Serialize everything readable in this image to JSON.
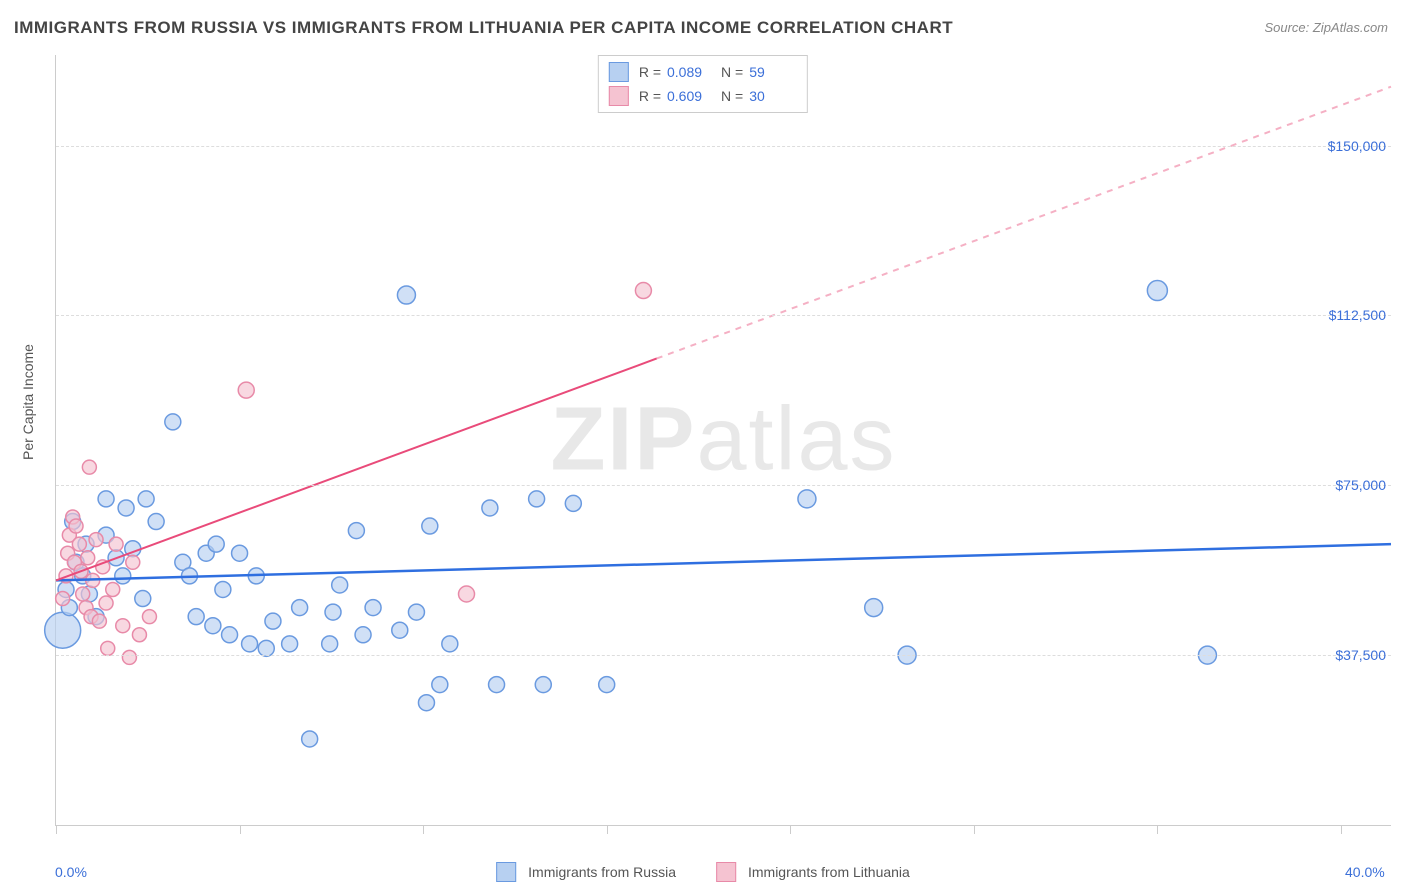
{
  "title": "IMMIGRANTS FROM RUSSIA VS IMMIGRANTS FROM LITHUANIA PER CAPITA INCOME CORRELATION CHART",
  "source": "Source: ZipAtlas.com",
  "watermark": {
    "bold": "ZIP",
    "rest": "atlas"
  },
  "ylabel": "Per Capita Income",
  "chart": {
    "type": "scatter",
    "background_color": "#ffffff",
    "grid_color": "#dddddd",
    "axis_color": "#cccccc",
    "text_color": "#555555",
    "value_color": "#3b6fd8",
    "title_fontsize": 17,
    "label_fontsize": 14,
    "xlim": [
      0,
      40
    ],
    "ylim": [
      0,
      170000
    ],
    "xtick_marks": [
      0,
      5.5,
      11,
      16.5,
      22,
      27.5,
      33,
      38.5
    ],
    "xtick_labels": [
      {
        "x": 0,
        "label": "0.0%"
      },
      {
        "x": 40,
        "label": "40.0%"
      }
    ],
    "ytick_labels": [
      {
        "y": 37500,
        "label": "$37,500"
      },
      {
        "y": 75000,
        "label": "$75,000"
      },
      {
        "y": 112500,
        "label": "$112,500"
      },
      {
        "y": 150000,
        "label": "$150,000"
      }
    ],
    "series": [
      {
        "name": "Immigrants from Russia",
        "fill_color": "#b7d0f1",
        "stroke_color": "#6a9ae0",
        "fill_opacity": 0.65,
        "marker_radius": 8,
        "trend": {
          "x1": 0,
          "y1": 54000,
          "x2": 40,
          "y2": 62000,
          "color": "#2f6fe0",
          "width": 2.5,
          "dash": "none"
        },
        "R": "0.089",
        "N": "59",
        "points": [
          {
            "x": 0.2,
            "y": 43000,
            "r": 18
          },
          {
            "x": 0.3,
            "y": 52000
          },
          {
            "x": 0.4,
            "y": 48000
          },
          {
            "x": 0.5,
            "y": 67000
          },
          {
            "x": 0.6,
            "y": 58000
          },
          {
            "x": 0.8,
            "y": 55000
          },
          {
            "x": 0.9,
            "y": 62000
          },
          {
            "x": 1.0,
            "y": 51000
          },
          {
            "x": 1.2,
            "y": 46000
          },
          {
            "x": 1.5,
            "y": 64000
          },
          {
            "x": 1.5,
            "y": 72000
          },
          {
            "x": 1.8,
            "y": 59000
          },
          {
            "x": 2.0,
            "y": 55000
          },
          {
            "x": 2.1,
            "y": 70000
          },
          {
            "x": 2.3,
            "y": 61000
          },
          {
            "x": 2.6,
            "y": 50000
          },
          {
            "x": 2.7,
            "y": 72000
          },
          {
            "x": 3.0,
            "y": 67000
          },
          {
            "x": 3.5,
            "y": 89000
          },
          {
            "x": 3.8,
            "y": 58000
          },
          {
            "x": 4.0,
            "y": 55000
          },
          {
            "x": 4.2,
            "y": 46000
          },
          {
            "x": 4.5,
            "y": 60000
          },
          {
            "x": 4.7,
            "y": 44000
          },
          {
            "x": 4.8,
            "y": 62000
          },
          {
            "x": 5.0,
            "y": 52000
          },
          {
            "x": 5.2,
            "y": 42000
          },
          {
            "x": 5.5,
            "y": 60000
          },
          {
            "x": 5.8,
            "y": 40000
          },
          {
            "x": 6.0,
            "y": 55000
          },
          {
            "x": 6.3,
            "y": 39000
          },
          {
            "x": 6.5,
            "y": 45000
          },
          {
            "x": 7.0,
            "y": 40000
          },
          {
            "x": 7.3,
            "y": 48000
          },
          {
            "x": 7.6,
            "y": 19000
          },
          {
            "x": 8.2,
            "y": 40000
          },
          {
            "x": 8.3,
            "y": 47000
          },
          {
            "x": 8.5,
            "y": 53000
          },
          {
            "x": 9.0,
            "y": 65000
          },
          {
            "x": 9.2,
            "y": 42000
          },
          {
            "x": 9.5,
            "y": 48000
          },
          {
            "x": 10.3,
            "y": 43000
          },
          {
            "x": 10.5,
            "y": 117000,
            "r": 9
          },
          {
            "x": 10.8,
            "y": 47000
          },
          {
            "x": 11.1,
            "y": 27000
          },
          {
            "x": 11.2,
            "y": 66000
          },
          {
            "x": 11.5,
            "y": 31000
          },
          {
            "x": 11.8,
            "y": 40000
          },
          {
            "x": 13.0,
            "y": 70000
          },
          {
            "x": 13.2,
            "y": 31000
          },
          {
            "x": 14.4,
            "y": 72000
          },
          {
            "x": 14.6,
            "y": 31000
          },
          {
            "x": 15.5,
            "y": 71000
          },
          {
            "x": 16.5,
            "y": 31000
          },
          {
            "x": 22.5,
            "y": 72000,
            "r": 9
          },
          {
            "x": 24.5,
            "y": 48000,
            "r": 9
          },
          {
            "x": 25.5,
            "y": 37500,
            "r": 9
          },
          {
            "x": 33.0,
            "y": 118000,
            "r": 10
          },
          {
            "x": 34.5,
            "y": 37500,
            "r": 9
          }
        ]
      },
      {
        "name": "Immigrants from Lithuania",
        "fill_color": "#f5c3d1",
        "stroke_color": "#e88aa8",
        "fill_opacity": 0.65,
        "marker_radius": 7,
        "trend_solid": {
          "x1": 0,
          "y1": 54000,
          "x2": 18,
          "y2": 103000,
          "color": "#e94b7a",
          "width": 2
        },
        "trend_dash": {
          "x1": 18,
          "y1": 103000,
          "x2": 40,
          "y2": 163000,
          "color": "#f5b0c4",
          "width": 2,
          "dash": "6,6"
        },
        "R": "0.609",
        "N": "30",
        "points": [
          {
            "x": 0.2,
            "y": 50000
          },
          {
            "x": 0.3,
            "y": 55000
          },
          {
            "x": 0.35,
            "y": 60000
          },
          {
            "x": 0.4,
            "y": 64000
          },
          {
            "x": 0.5,
            "y": 68000
          },
          {
            "x": 0.55,
            "y": 58000
          },
          {
            "x": 0.6,
            "y": 66000
          },
          {
            "x": 0.7,
            "y": 62000
          },
          {
            "x": 0.75,
            "y": 56000
          },
          {
            "x": 0.8,
            "y": 51000
          },
          {
            "x": 0.9,
            "y": 48000
          },
          {
            "x": 0.95,
            "y": 59000
          },
          {
            "x": 1.0,
            "y": 79000
          },
          {
            "x": 1.05,
            "y": 46000
          },
          {
            "x": 1.1,
            "y": 54000
          },
          {
            "x": 1.2,
            "y": 63000
          },
          {
            "x": 1.3,
            "y": 45000
          },
          {
            "x": 1.4,
            "y": 57000
          },
          {
            "x": 1.5,
            "y": 49000
          },
          {
            "x": 1.55,
            "y": 39000
          },
          {
            "x": 1.7,
            "y": 52000
          },
          {
            "x": 1.8,
            "y": 62000
          },
          {
            "x": 2.0,
            "y": 44000
          },
          {
            "x": 2.2,
            "y": 37000
          },
          {
            "x": 2.3,
            "y": 58000
          },
          {
            "x": 2.5,
            "y": 42000
          },
          {
            "x": 2.8,
            "y": 46000
          },
          {
            "x": 5.7,
            "y": 96000,
            "r": 8
          },
          {
            "x": 12.3,
            "y": 51000,
            "r": 8
          },
          {
            "x": 17.6,
            "y": 118000,
            "r": 8
          }
        ]
      }
    ],
    "legend_top": [
      {
        "series": 0,
        "R_label": "R =",
        "N_label": "N ="
      },
      {
        "series": 1,
        "R_label": "R =",
        "N_label": "N ="
      }
    ],
    "legend_bottom": [
      {
        "series": 0
      },
      {
        "series": 1
      }
    ]
  }
}
